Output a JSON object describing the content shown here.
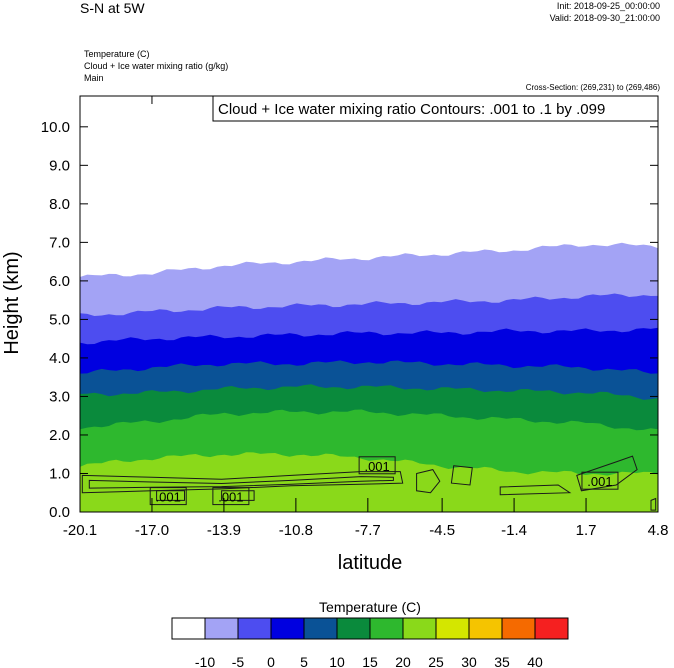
{
  "header": {
    "title": "S-N at 5W",
    "init": "Init: 2018-09-25_00:00:00",
    "valid": "Valid: 2018-09-30_21:00:00",
    "field1": "Temperature   (C)",
    "field2": "Cloud + Ice water mixing ratio   (g/kg)",
    "field3": "Main",
    "cross_section": "Cross-Section: (269,231) to (269,486)"
  },
  "chart_data": {
    "type": "area",
    "title": "Cloud + Ice water mixing ratio Contours: .001 to .1 by .099",
    "xlabel": "latitude",
    "ylabel": "Height (km)",
    "xlim": [
      -20.1,
      4.8
    ],
    "ylim": [
      0.0,
      10.8
    ],
    "x_ticks": [
      "-20.1",
      "-17.0",
      "-13.9",
      "-10.8",
      "-7.7",
      "-4.5",
      "-1.4",
      "1.7",
      "4.8"
    ],
    "y_ticks": [
      "0.0",
      "1.0",
      "2.0",
      "3.0",
      "4.0",
      "5.0",
      "6.0",
      "7.0",
      "8.0",
      "9.0",
      "10.0"
    ],
    "x_tick_values": [
      -20.1,
      -17.0,
      -13.9,
      -10.8,
      -7.7,
      -4.5,
      -1.4,
      1.7,
      4.8
    ],
    "y_tick_values": [
      0,
      1,
      2,
      3,
      4,
      5,
      6,
      7,
      8,
      9,
      10
    ],
    "lat_samples": [
      -20.1,
      -17.0,
      -13.9,
      -10.8,
      -7.7,
      -4.5,
      -1.4,
      1.7,
      4.8
    ],
    "filled_layers": [
      {
        "level": "-10",
        "color": "#a3a3f5",
        "top": [
          6.1,
          6.2,
          6.4,
          6.5,
          6.6,
          6.7,
          6.8,
          6.95,
          6.9
        ]
      },
      {
        "level": "-5",
        "color": "#4d4df0",
        "top": [
          5.1,
          5.2,
          5.3,
          5.35,
          5.4,
          5.45,
          5.5,
          5.6,
          5.65
        ]
      },
      {
        "level": "0",
        "color": "#0000e0",
        "top": [
          4.4,
          4.5,
          4.55,
          4.6,
          4.65,
          4.65,
          4.7,
          4.7,
          4.75
        ]
      },
      {
        "level": "5",
        "color": "#0a5296",
        "top": [
          3.6,
          3.75,
          3.85,
          3.85,
          3.9,
          3.85,
          3.8,
          3.75,
          3.6
        ]
      },
      {
        "level": "10",
        "color": "#0a8a3c",
        "top": [
          3.05,
          3.1,
          3.2,
          3.25,
          3.25,
          3.2,
          3.15,
          3.1,
          2.95
        ]
      },
      {
        "level": "15",
        "color": "#2eb82e",
        "top": [
          2.2,
          2.35,
          2.55,
          2.6,
          2.6,
          2.5,
          2.4,
          2.3,
          2.1
        ]
      },
      {
        "level": "20",
        "color": "#8ad91a",
        "top": [
          1.2,
          1.4,
          1.5,
          1.5,
          1.4,
          1.2,
          1.05,
          1.0,
          1.0
        ]
      }
    ],
    "contour_labels": [
      {
        "text": ".001",
        "x": -16.3,
        "y": 0.4
      },
      {
        "text": ".001",
        "x": -13.6,
        "y": 0.4
      },
      {
        "text": ".001",
        "x": -7.3,
        "y": 1.2
      },
      {
        "text": ".001",
        "x": 2.3,
        "y": 0.8
      }
    ]
  },
  "colorbar": {
    "title": "Temperature  (C)",
    "colors": [
      "#ffffff",
      "#a3a3f5",
      "#4d4df0",
      "#0000e0",
      "#0a5296",
      "#0a8a3c",
      "#2eb82e",
      "#8ad91a",
      "#d4e600",
      "#f5c400",
      "#f56a00",
      "#f52020"
    ],
    "labels": [
      "-10",
      "-5",
      "0",
      "5",
      "10",
      "15",
      "20",
      "25",
      "30",
      "35",
      "40"
    ]
  }
}
